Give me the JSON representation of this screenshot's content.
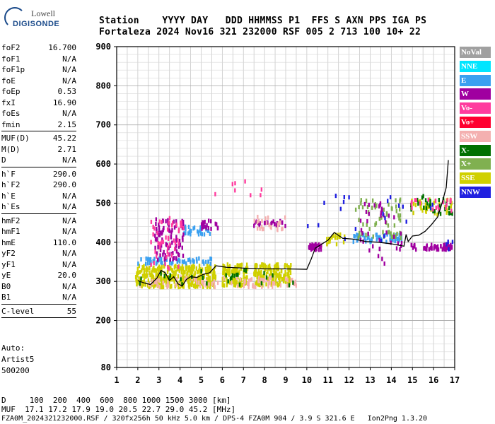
{
  "logo": {
    "line1": "Lowell",
    "line2": "DIGISONDE"
  },
  "header": {
    "line1": "Station    YYYY DAY   DDD HHMMSS P1  FFS S AXN PPS IGA PS",
    "line2": "Fortaleza 2024 Nov16 321 232000 RSF 005 2 713 100 10+ 22"
  },
  "params_group1": [
    {
      "name": "foF2",
      "value": "16.700"
    },
    {
      "name": "foF1",
      "value": "N/A"
    },
    {
      "name": "foF1p",
      "value": "N/A"
    },
    {
      "name": "foE",
      "value": "N/A"
    },
    {
      "name": "foEp",
      "value": "0.53"
    },
    {
      "name": "fxI",
      "value": "16.90"
    },
    {
      "name": "foEs",
      "value": "N/A"
    },
    {
      "name": "fmin",
      "value": "2.15"
    }
  ],
  "params_group2": [
    {
      "name": "MUF(D)",
      "value": "45.22"
    },
    {
      "name": "M(D)",
      "value": "2.71"
    },
    {
      "name": "D",
      "value": "N/A"
    }
  ],
  "params_group3": [
    {
      "name": "h`F",
      "value": "290.0"
    },
    {
      "name": "h`F2",
      "value": "290.0"
    },
    {
      "name": "h`E",
      "value": "N/A"
    },
    {
      "name": "h`Es",
      "value": "N/A"
    }
  ],
  "params_group4": [
    {
      "name": "hmF2",
      "value": "N/A"
    },
    {
      "name": "hmF1",
      "value": "N/A"
    },
    {
      "name": "hmE",
      "value": "110.0"
    },
    {
      "name": "yF2",
      "value": "N/A"
    },
    {
      "name": "yF1",
      "value": "N/A"
    },
    {
      "name": "yE",
      "value": "20.0"
    },
    {
      "name": "B0",
      "value": "N/A"
    },
    {
      "name": "B1",
      "value": "N/A"
    }
  ],
  "clevel": {
    "name": "C-level",
    "value": "55"
  },
  "auto": {
    "line1": "Auto:",
    "line2": "Artist5",
    "line3": "500200"
  },
  "legend": [
    {
      "label": "NoVal",
      "color": "#a0a0a0"
    },
    {
      "label": "NNE",
      "color": "#00e5ff"
    },
    {
      "label": "E",
      "color": "#3aa0f0"
    },
    {
      "label": "W",
      "color": "#a000a0"
    },
    {
      "label": "Vo-",
      "color": "#ff3c9e"
    },
    {
      "label": "Vo+",
      "color": "#ff0030"
    },
    {
      "label": "SSW",
      "color": "#f4b0b0"
    },
    {
      "label": "X-",
      "color": "#007000"
    },
    {
      "label": "X+",
      "color": "#80b050"
    },
    {
      "label": "SSE",
      "color": "#d0d000"
    },
    {
      "label": "NNW",
      "color": "#2020e0"
    }
  ],
  "footer": {
    "line1": "D     100  200  400  600  800 1000 1500 3000 [km]",
    "line2": "MUF  17.1 17.2 17.9 19.0 20.5 22.7 29.0 45.2 [MHz]",
    "line3": "FZA0M_2024321232000.RSF / 320fx256h 50 kHz 5.0 km / DPS-4 FZA0M 904 / 3.9 S 321.6 E   Ion2Png 1.3.20"
  },
  "chart_data": {
    "type": "scatter",
    "xlim": [
      1,
      17
    ],
    "ylim": [
      80,
      900
    ],
    "x_ticks": [
      1,
      2,
      3,
      4,
      5,
      6,
      7,
      8,
      9,
      10,
      11,
      12,
      13,
      14,
      15,
      16,
      17
    ],
    "y_ticks": [
      80,
      200,
      300,
      400,
      500,
      600,
      700,
      800,
      900
    ],
    "grid": true,
    "trace": {
      "x": [
        2.0,
        2.3,
        2.6,
        2.9,
        3.1,
        3.3,
        3.5,
        3.7,
        3.9,
        4.1,
        4.3,
        4.5,
        4.8,
        5.1,
        5.4,
        5.7,
        6.2,
        7.0,
        8.0,
        9.0,
        10.0,
        10.2,
        10.4,
        10.7,
        11.0,
        11.3,
        11.7,
        12.2,
        12.8,
        13.4,
        14.0,
        14.6,
        14.7,
        14.8,
        15.0,
        15.3,
        15.6,
        15.9,
        16.2,
        16.4,
        16.6,
        16.7
      ],
      "y": [
        302,
        296,
        292,
        308,
        328,
        322,
        302,
        312,
        294,
        288,
        305,
        312,
        310,
        318,
        322,
        340,
        336,
        334,
        332,
        332,
        331,
        356,
        385,
        395,
        405,
        425,
        410,
        408,
        402,
        400,
        396,
        390,
        420,
        402,
        416,
        418,
        428,
        445,
        465,
        500,
        540,
        610
      ]
    },
    "echoes": [
      {
        "legend": "SSE",
        "x_range": [
          1.9,
          5.7
        ],
        "h_range": [
          285,
          340
        ],
        "n": 360
      },
      {
        "legend": "SSE",
        "x_range": [
          6.0,
          7.2
        ],
        "h_range": [
          288,
          345
        ],
        "n": 110
      },
      {
        "legend": "SSE",
        "x_range": [
          7.5,
          9.3
        ],
        "h_range": [
          290,
          345
        ],
        "n": 160
      },
      {
        "legend": "SSW",
        "x_range": [
          2.0,
          9.5
        ],
        "h_range": [
          285,
          310
        ],
        "n": 90
      },
      {
        "legend": "E",
        "x_range": [
          2.0,
          5.5
        ],
        "h_range": [
          345,
          360
        ],
        "n": 60
      },
      {
        "legend": "E",
        "x_range": [
          4.0,
          5.5
        ],
        "h_range": [
          420,
          440
        ],
        "n": 30
      },
      {
        "legend": "W",
        "x_range": [
          2.8,
          4.2
        ],
        "h_range": [
          355,
          460
        ],
        "n": 90
      },
      {
        "legend": "Vo-",
        "x_range": [
          2.6,
          4.2
        ],
        "h_range": [
          330,
          470
        ],
        "n": 50
      },
      {
        "legend": "W",
        "x_range": [
          5.0,
          5.8
        ],
        "h_range": [
          430,
          455
        ],
        "n": 20
      },
      {
        "legend": "W",
        "x_range": [
          7.5,
          9.0
        ],
        "h_range": [
          440,
          455
        ],
        "n": 25
      },
      {
        "legend": "SSW",
        "x_range": [
          7.5,
          9.0
        ],
        "h_range": [
          430,
          470
        ],
        "n": 25
      },
      {
        "legend": "W",
        "x_range": [
          10.1,
          10.7
        ],
        "h_range": [
          380,
          395
        ],
        "n": 30
      },
      {
        "legend": "SSE",
        "x_range": [
          10.9,
          11.8
        ],
        "h_range": [
          395,
          420
        ],
        "n": 20
      },
      {
        "legend": "E",
        "x_range": [
          12.2,
          14.6
        ],
        "h_range": [
          400,
          420
        ],
        "n": 50
      },
      {
        "legend": "X+",
        "x_range": [
          12.3,
          14.5
        ],
        "h_range": [
          410,
          510
        ],
        "n": 60
      },
      {
        "legend": "W",
        "x_range": [
          12.4,
          14.5
        ],
        "h_range": [
          345,
          500
        ],
        "n": 40
      },
      {
        "legend": "W",
        "x_range": [
          14.9,
          16.9
        ],
        "h_range": [
          380,
          395
        ],
        "n": 55
      },
      {
        "legend": "SSE",
        "x_range": [
          14.9,
          16.9
        ],
        "h_range": [
          470,
          510
        ],
        "n": 40
      },
      {
        "legend": "X-",
        "x_range": [
          14.9,
          16.9
        ],
        "h_range": [
          470,
          520
        ],
        "n": 30
      },
      {
        "legend": "Vo-",
        "x_range": [
          14.9,
          16.9
        ],
        "h_range": [
          480,
          510
        ],
        "n": 20
      },
      {
        "legend": "NNW",
        "x_range": [
          10.0,
          16.9
        ],
        "h_range": [
          380,
          520
        ],
        "n": 25
      },
      {
        "legend": "X-",
        "x_range": [
          2.0,
          9.5
        ],
        "h_range": [
          290,
          330
        ],
        "n": 30
      },
      {
        "legend": "Vo-",
        "x_range": [
          5.5,
          8.0
        ],
        "h_range": [
          520,
          570
        ],
        "n": 8
      }
    ]
  }
}
